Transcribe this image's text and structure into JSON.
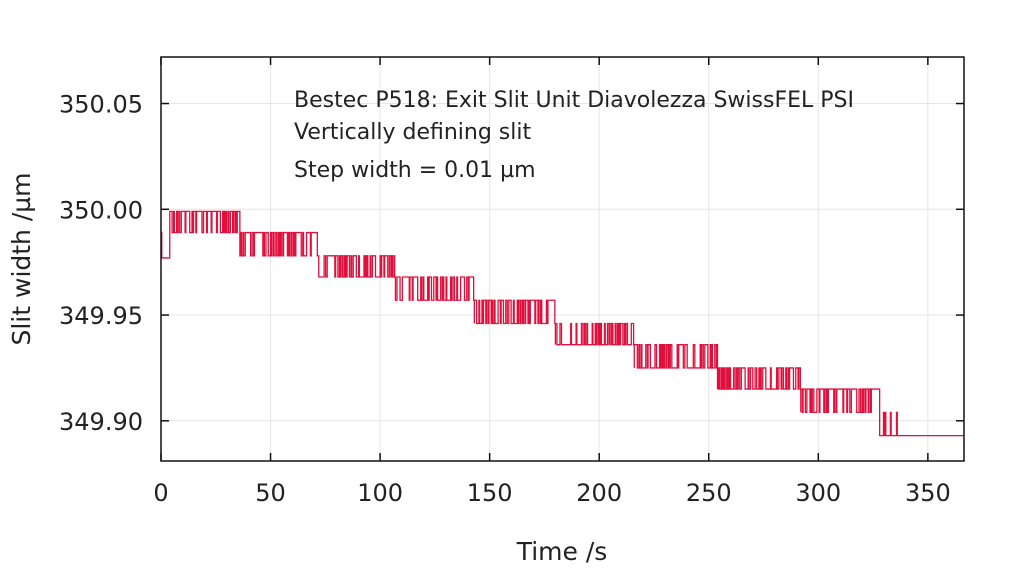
{
  "chart_data": {
    "type": "line",
    "annotation": [
      "Bestec P518: Exit Slit Unit Diavolezza SwissFEL PSI",
      "Vertically defining slit",
      "Step width = 0.01 µm"
    ],
    "xlabel": "Time /s",
    "ylabel": "Slit width /µm",
    "xlim": [
      0,
      366.5
    ],
    "ylim": [
      349.881,
      350.072
    ],
    "xticks": [
      0,
      50,
      100,
      150,
      200,
      250,
      300,
      350
    ],
    "xtick_labels": [
      "0",
      "50",
      "100",
      "150",
      "200",
      "250",
      "300",
      "350"
    ],
    "yticks": [
      349.9,
      349.95,
      350.0,
      350.05
    ],
    "ytick_labels": [
      "349.90",
      "349.95",
      "350.00",
      "350.05"
    ],
    "grid": true,
    "series_color": "#e0103c",
    "series": [
      {
        "name": "slit width",
        "description": "segments of noise toggling between two adjacent levels",
        "segments": [
          {
            "start": 0,
            "end": 4,
            "low": 349.977,
            "high": 349.989,
            "density": 0.3
          },
          {
            "start": 4,
            "end": 36,
            "low": 349.989,
            "high": 349.999,
            "density": 0.9
          },
          {
            "start": 36,
            "end": 72,
            "low": 349.978,
            "high": 349.989,
            "density": 0.9
          },
          {
            "start": 72,
            "end": 107,
            "low": 349.968,
            "high": 349.978,
            "density": 0.8
          },
          {
            "start": 107,
            "end": 143,
            "low": 349.957,
            "high": 349.968,
            "density": 0.8
          },
          {
            "start": 143,
            "end": 180,
            "low": 349.946,
            "high": 349.957,
            "density": 0.8
          },
          {
            "start": 180,
            "end": 216,
            "low": 349.936,
            "high": 349.946,
            "density": 0.5
          },
          {
            "start": 216,
            "end": 254,
            "low": 349.925,
            "high": 349.936,
            "density": 0.6
          },
          {
            "start": 254,
            "end": 292,
            "low": 349.915,
            "high": 349.925,
            "density": 0.7
          },
          {
            "start": 292,
            "end": 328,
            "low": 349.904,
            "high": 349.915,
            "density": 0.9
          },
          {
            "start": 328,
            "end": 342,
            "low": 349.893,
            "high": 349.904,
            "density": 0.25
          },
          {
            "start": 342,
            "end": 366.5,
            "low": 349.893,
            "high": 349.893,
            "density": 0
          }
        ]
      }
    ]
  }
}
